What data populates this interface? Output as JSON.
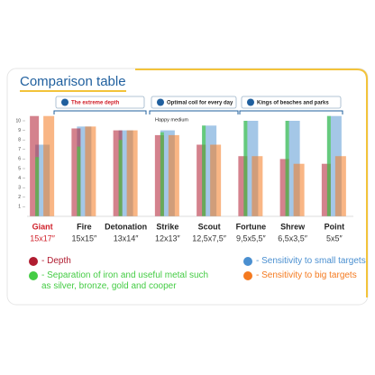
{
  "chart_data": {
    "type": "bar",
    "title": "Comparison table",
    "groups": [
      "The extreme depth",
      "Optimal coil for every day",
      "Kings of beaches and parks"
    ],
    "annotation": "Happy medium",
    "categories": [
      "Giant",
      "Fire",
      "Detonation",
      "Strike",
      "Scout",
      "Fortune",
      "Shrew",
      "Point"
    ],
    "sizes": [
      "15x17″",
      "15x15″",
      "13x14″",
      "12x13″",
      "12,5x7,5″",
      "9,5x5,5″",
      "6,5x3,5″",
      "5x5″"
    ],
    "ylim": [
      0,
      10.8
    ],
    "yticks": [
      1,
      2,
      3,
      4,
      5,
      6,
      7,
      8,
      9,
      10
    ],
    "series": [
      {
        "name": "- Depth",
        "color": "#b01c30",
        "values": [
          10.5,
          9.2,
          9,
          8.5,
          7.5,
          6.3,
          6,
          5.5
        ]
      },
      {
        "name": "- Separation of iron and useful metal such as silver, bronze, gold and cooper",
        "color": "#44cc44",
        "values": [
          6.2,
          7.3,
          8,
          8.8,
          9.5,
          10,
          10,
          10.5
        ]
      },
      {
        "name": "- Sensitivity to small targets",
        "color": "#4a8fd0",
        "values": [
          7.5,
          9.4,
          9,
          9,
          9.5,
          10,
          10,
          10.5
        ]
      },
      {
        "name": "- Sensitivity to big targets",
        "color": "#f47a20",
        "values": [
          10.5,
          9.4,
          9,
          8.5,
          7.5,
          6.3,
          5.5,
          6.3
        ]
      }
    ]
  }
}
